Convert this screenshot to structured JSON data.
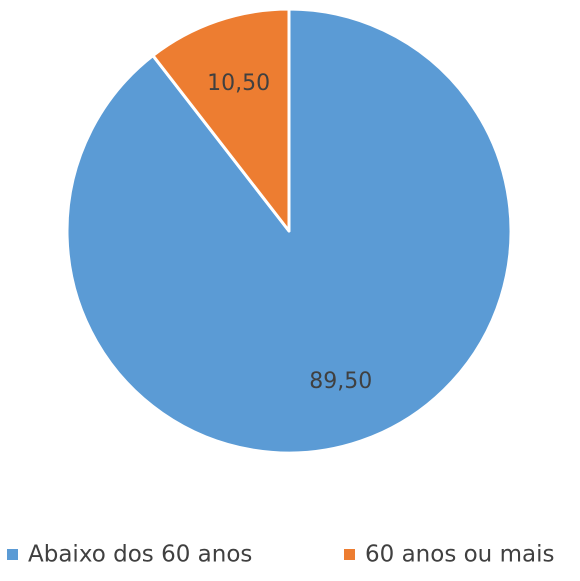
{
  "chart_data": {
    "type": "pie",
    "categories": [
      "Abaixo dos 60 anos",
      "60 anos ou mais"
    ],
    "values": [
      89.5,
      10.5
    ],
    "value_labels": [
      "89,50",
      "10,50"
    ],
    "colors": [
      "#5b9bd5",
      "#ed7d31"
    ],
    "legend": "bottom"
  }
}
